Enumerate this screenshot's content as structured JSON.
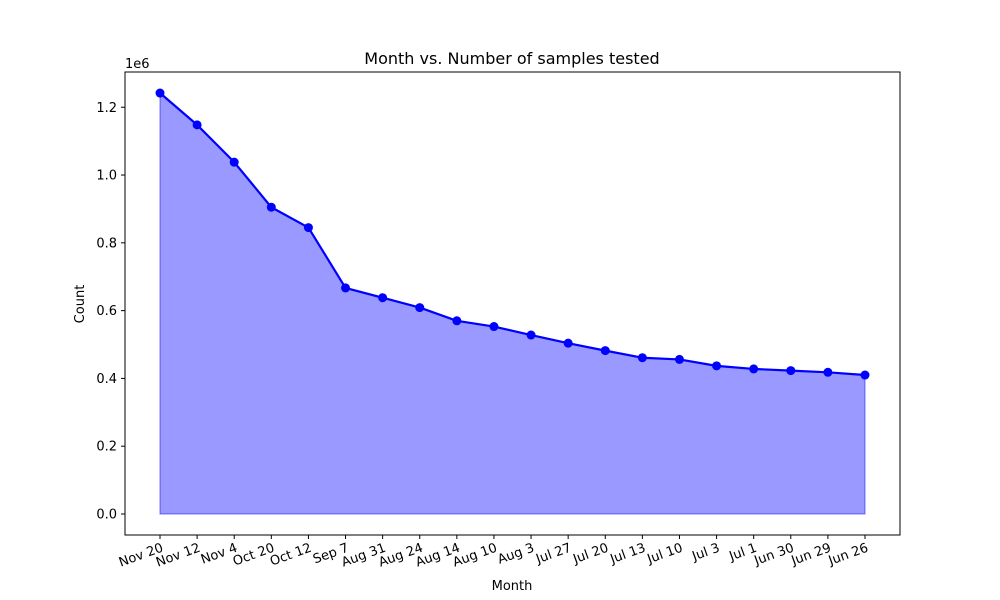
{
  "chart_data": {
    "type": "area",
    "title": "Month vs. Number of samples tested",
    "xlabel": "Month",
    "ylabel": "Count",
    "y_offset_label": "1e6",
    "categories": [
      "Nov 20",
      "Nov 12",
      "Nov 4",
      "Oct 20",
      "Oct 12",
      "Sep 7",
      "Aug 31",
      "Aug 24",
      "Aug 14",
      "Aug 10",
      "Aug 3",
      "Jul 27",
      "Jul 20",
      "Jul 13",
      "Jul 10",
      "Jul 3",
      "Jul 1",
      "Jun 30",
      "Jun 29",
      "Jun 26"
    ],
    "values": [
      1242000,
      1148000,
      1038000,
      905000,
      845000,
      667000,
      638000,
      609000,
      570000,
      553000,
      528000,
      504000,
      482000,
      461000,
      456000,
      437000,
      428000,
      423000,
      418000,
      410000
    ],
    "y_ticks": [
      0.0,
      0.2,
      0.4,
      0.6,
      0.8,
      1.0,
      1.2
    ],
    "y_tick_labels": [
      "0.0",
      "0.2",
      "0.4",
      "0.6",
      "0.8",
      "1.0",
      "1.2"
    ],
    "y_scale": 1000000,
    "ylim": [
      -62000,
      1304000
    ],
    "line_color": "#0000ff",
    "fill_color": "#0000ff",
    "fill_opacity": 0.4,
    "grid": false,
    "legend": "none"
  }
}
